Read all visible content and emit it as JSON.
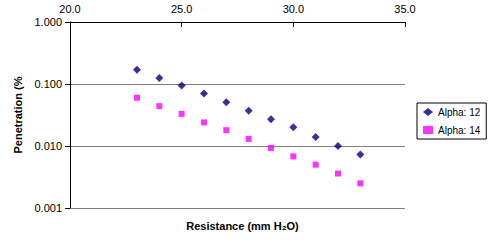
{
  "chart_data": {
    "type": "scatter",
    "x_label": "Resistance (mm H₂O)",
    "y_label": "Penetration (%",
    "log": "y",
    "grid": true,
    "legend": "right",
    "xlim": [
      20,
      35
    ],
    "xticks": [
      {
        "value": 20,
        "label": "20.0"
      },
      {
        "value": 25,
        "label": "25.0"
      },
      {
        "value": 30,
        "label": "30.0"
      },
      {
        "value": 35,
        "label": "35.0"
      }
    ],
    "ylim": [
      0.001,
      1
    ],
    "yticks": [
      {
        "value": 0.001,
        "label": "0.001"
      },
      {
        "value": 0.01,
        "label": "0.010"
      },
      {
        "value": 0.1,
        "label": "0.100"
      },
      {
        "value": 1,
        "label": "1.000"
      }
    ],
    "x": [
      23,
      24,
      25,
      26,
      27,
      28,
      29,
      30,
      31,
      32,
      33
    ],
    "series": [
      {
        "name": "Alpha: 12",
        "color": "#000080",
        "marker": "diamond",
        "values": [
          0.17,
          0.125,
          0.095,
          0.07,
          0.051,
          0.037,
          0.027,
          0.02,
          0.014,
          0.01,
          0.0073
        ]
      },
      {
        "name": "Alpha: 14",
        "color": "#ff00ff",
        "marker": "square",
        "values": [
          0.06,
          0.044,
          0.033,
          0.024,
          0.018,
          0.013,
          0.0093,
          0.0068,
          0.005,
          0.0036,
          0.0025
        ]
      }
    ]
  }
}
